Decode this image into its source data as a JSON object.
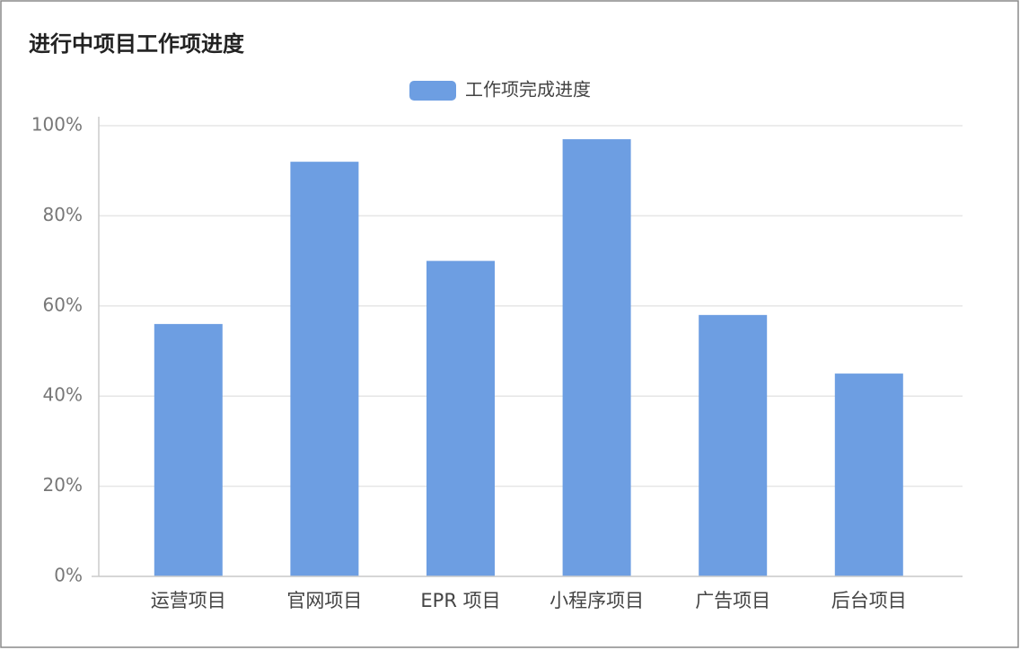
{
  "chart_data": {
    "type": "bar",
    "title": "进行中项目工作项进度",
    "legend": "工作项完成进度",
    "categories": [
      "运营项目",
      "官网项目",
      "EPR 项目",
      "小程序项目",
      "广告项目",
      "后台项目"
    ],
    "values": [
      56,
      92,
      70,
      97,
      58,
      45
    ],
    "color": "#6d9ee2",
    "ylim": [
      0,
      100
    ],
    "yticks": [
      {
        "value": 0,
        "label": "0%"
      },
      {
        "value": 20,
        "label": "20%"
      },
      {
        "value": 40,
        "label": "40%"
      },
      {
        "value": 60,
        "label": "60%"
      },
      {
        "value": 80,
        "label": "80%"
      },
      {
        "value": 100,
        "label": "100%"
      }
    ],
    "grid": true
  }
}
